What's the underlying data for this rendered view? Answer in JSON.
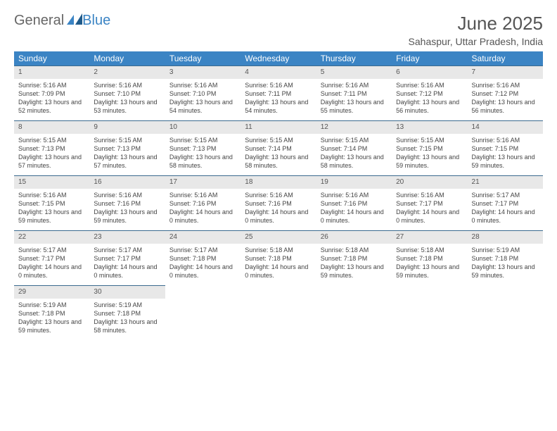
{
  "brand": {
    "text1": "General",
    "text2": "Blue"
  },
  "title": "June 2025",
  "location": "Sahaspur, Uttar Pradesh, India",
  "colors": {
    "header_bg": "#3b84c4",
    "header_text": "#ffffff",
    "daynum_bg": "#e8e8e8",
    "daynum_border": "#3b6a8f",
    "body_text": "#444444",
    "title_text": "#555555"
  },
  "weekdays": [
    "Sunday",
    "Monday",
    "Tuesday",
    "Wednesday",
    "Thursday",
    "Friday",
    "Saturday"
  ],
  "days": [
    {
      "n": "1",
      "sunrise": "5:16 AM",
      "sunset": "7:09 PM",
      "daylight": "13 hours and 52 minutes."
    },
    {
      "n": "2",
      "sunrise": "5:16 AM",
      "sunset": "7:10 PM",
      "daylight": "13 hours and 53 minutes."
    },
    {
      "n": "3",
      "sunrise": "5:16 AM",
      "sunset": "7:10 PM",
      "daylight": "13 hours and 54 minutes."
    },
    {
      "n": "4",
      "sunrise": "5:16 AM",
      "sunset": "7:11 PM",
      "daylight": "13 hours and 54 minutes."
    },
    {
      "n": "5",
      "sunrise": "5:16 AM",
      "sunset": "7:11 PM",
      "daylight": "13 hours and 55 minutes."
    },
    {
      "n": "6",
      "sunrise": "5:16 AM",
      "sunset": "7:12 PM",
      "daylight": "13 hours and 56 minutes."
    },
    {
      "n": "7",
      "sunrise": "5:16 AM",
      "sunset": "7:12 PM",
      "daylight": "13 hours and 56 minutes."
    },
    {
      "n": "8",
      "sunrise": "5:15 AM",
      "sunset": "7:13 PM",
      "daylight": "13 hours and 57 minutes."
    },
    {
      "n": "9",
      "sunrise": "5:15 AM",
      "sunset": "7:13 PM",
      "daylight": "13 hours and 57 minutes."
    },
    {
      "n": "10",
      "sunrise": "5:15 AM",
      "sunset": "7:13 PM",
      "daylight": "13 hours and 58 minutes."
    },
    {
      "n": "11",
      "sunrise": "5:15 AM",
      "sunset": "7:14 PM",
      "daylight": "13 hours and 58 minutes."
    },
    {
      "n": "12",
      "sunrise": "5:15 AM",
      "sunset": "7:14 PM",
      "daylight": "13 hours and 58 minutes."
    },
    {
      "n": "13",
      "sunrise": "5:15 AM",
      "sunset": "7:15 PM",
      "daylight": "13 hours and 59 minutes."
    },
    {
      "n": "14",
      "sunrise": "5:16 AM",
      "sunset": "7:15 PM",
      "daylight": "13 hours and 59 minutes."
    },
    {
      "n": "15",
      "sunrise": "5:16 AM",
      "sunset": "7:15 PM",
      "daylight": "13 hours and 59 minutes."
    },
    {
      "n": "16",
      "sunrise": "5:16 AM",
      "sunset": "7:16 PM",
      "daylight": "13 hours and 59 minutes."
    },
    {
      "n": "17",
      "sunrise": "5:16 AM",
      "sunset": "7:16 PM",
      "daylight": "14 hours and 0 minutes."
    },
    {
      "n": "18",
      "sunrise": "5:16 AM",
      "sunset": "7:16 PM",
      "daylight": "14 hours and 0 minutes."
    },
    {
      "n": "19",
      "sunrise": "5:16 AM",
      "sunset": "7:16 PM",
      "daylight": "14 hours and 0 minutes."
    },
    {
      "n": "20",
      "sunrise": "5:16 AM",
      "sunset": "7:17 PM",
      "daylight": "14 hours and 0 minutes."
    },
    {
      "n": "21",
      "sunrise": "5:17 AM",
      "sunset": "7:17 PM",
      "daylight": "14 hours and 0 minutes."
    },
    {
      "n": "22",
      "sunrise": "5:17 AM",
      "sunset": "7:17 PM",
      "daylight": "14 hours and 0 minutes."
    },
    {
      "n": "23",
      "sunrise": "5:17 AM",
      "sunset": "7:17 PM",
      "daylight": "14 hours and 0 minutes."
    },
    {
      "n": "24",
      "sunrise": "5:17 AM",
      "sunset": "7:18 PM",
      "daylight": "14 hours and 0 minutes."
    },
    {
      "n": "25",
      "sunrise": "5:18 AM",
      "sunset": "7:18 PM",
      "daylight": "14 hours and 0 minutes."
    },
    {
      "n": "26",
      "sunrise": "5:18 AM",
      "sunset": "7:18 PM",
      "daylight": "13 hours and 59 minutes."
    },
    {
      "n": "27",
      "sunrise": "5:18 AM",
      "sunset": "7:18 PM",
      "daylight": "13 hours and 59 minutes."
    },
    {
      "n": "28",
      "sunrise": "5:19 AM",
      "sunset": "7:18 PM",
      "daylight": "13 hours and 59 minutes."
    },
    {
      "n": "29",
      "sunrise": "5:19 AM",
      "sunset": "7:18 PM",
      "daylight": "13 hours and 59 minutes."
    },
    {
      "n": "30",
      "sunrise": "5:19 AM",
      "sunset": "7:18 PM",
      "daylight": "13 hours and 58 minutes."
    }
  ],
  "labels": {
    "sunrise": "Sunrise:",
    "sunset": "Sunset:",
    "daylight": "Daylight:"
  }
}
